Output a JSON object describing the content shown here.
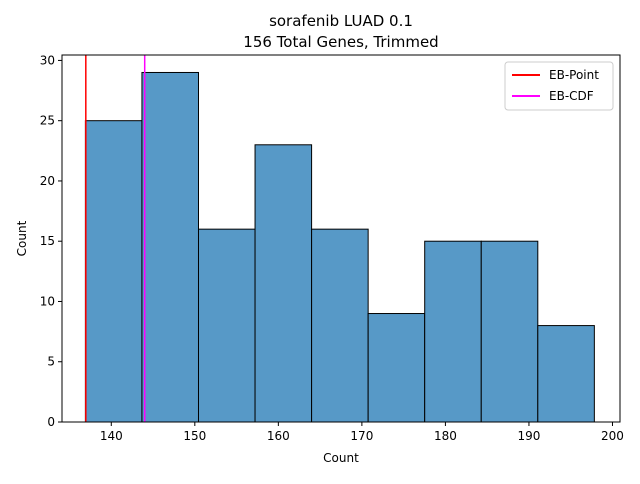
{
  "chart_data": {
    "type": "bar",
    "title": "sorafenib LUAD 0.1",
    "subtitle": "156 Total Genes, Trimmed",
    "xlabel": "Count",
    "ylabel": "Count",
    "xlim": [
      134.1,
      200.9
    ],
    "ylim": [
      0,
      30.45
    ],
    "bin_edges": [
      136.9,
      143.67,
      150.44,
      157.21,
      163.98,
      170.75,
      177.52,
      184.29,
      191.06,
      197.83
    ],
    "values": [
      25,
      29,
      16,
      23,
      16,
      9,
      15,
      15,
      8
    ],
    "x_ticks": [
      140,
      150,
      160,
      170,
      180,
      190,
      200
    ],
    "y_ticks": [
      0,
      5,
      10,
      15,
      20,
      25,
      30
    ],
    "vlines": [
      {
        "name": "EB-Point",
        "x": 136.95,
        "color": "#ff0000"
      },
      {
        "name": "EB-CDF",
        "x": 144.0,
        "color": "#ff00ff"
      }
    ],
    "legend": {
      "placement": "top-right",
      "entries": [
        {
          "label": "EB-Point",
          "color": "#ff0000"
        },
        {
          "label": "EB-CDF",
          "color": "#ff00ff"
        }
      ]
    },
    "bar_color": "#5799c7",
    "grid": false
  }
}
